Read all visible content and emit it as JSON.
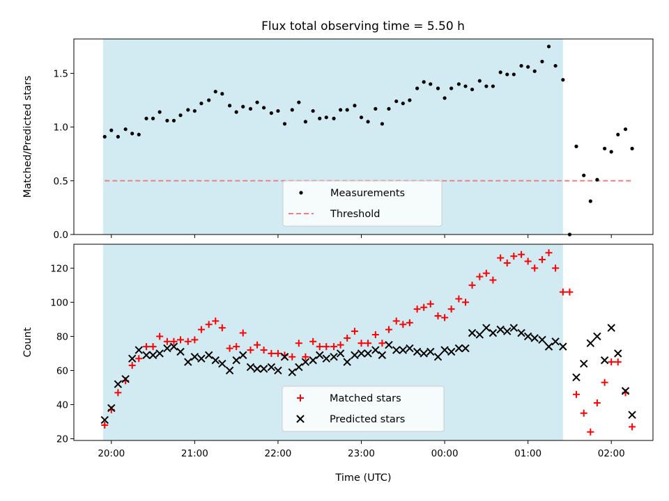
{
  "chart_data": [
    {
      "type": "scatter",
      "title": "Flux total observing time = 5.50 h",
      "ylabel": "Matched/Predicted stars",
      "ylim": [
        0,
        1.82
      ],
      "yticks": [
        0.0,
        0.5,
        1.0,
        1.5
      ],
      "ytick_labels": [
        "0.0",
        "0.5",
        "1.0",
        "1.5"
      ],
      "x_hours_range": [
        19.55,
        26.5
      ],
      "observing_window_hours": [
        19.9,
        25.42
      ],
      "observing_window_color": "#add8e6",
      "series": [
        {
          "name": "Measurements",
          "marker": "dot",
          "color": "#000000",
          "x": [
            19.92,
            20,
            20.08,
            20.17,
            20.25,
            20.33,
            20.42,
            20.5,
            20.58,
            20.67,
            20.75,
            20.83,
            20.92,
            21,
            21.08,
            21.17,
            21.25,
            21.33,
            21.42,
            21.5,
            21.58,
            21.67,
            21.75,
            21.83,
            21.92,
            22,
            22.08,
            22.17,
            22.25,
            22.33,
            22.42,
            22.5,
            22.58,
            22.67,
            22.75,
            22.83,
            22.92,
            23,
            23.08,
            23.17,
            23.25,
            23.33,
            23.42,
            23.5,
            23.58,
            23.67,
            23.75,
            23.83,
            23.92,
            24,
            24.08,
            24.17,
            24.25,
            24.33,
            24.42,
            24.5,
            24.58,
            24.67,
            24.75,
            24.83,
            24.92,
            25,
            25.08,
            25.17,
            25.25,
            25.33,
            25.42,
            25.5,
            25.58,
            25.67,
            25.75,
            25.83,
            25.92,
            26,
            26.08,
            26.17,
            26.25
          ],
          "y": [
            0.91,
            0.97,
            0.91,
            0.98,
            0.94,
            0.93,
            1.08,
            1.08,
            1.14,
            1.06,
            1.06,
            1.11,
            1.16,
            1.15,
            1.22,
            1.25,
            1.33,
            1.31,
            1.2,
            1.14,
            1.19,
            1.17,
            1.23,
            1.18,
            1.13,
            1.15,
            1.03,
            1.16,
            1.23,
            1.05,
            1.15,
            1.08,
            1.09,
            1.08,
            1.16,
            1.16,
            1.2,
            1.09,
            1.05,
            1.17,
            1.03,
            1.17,
            1.24,
            1.22,
            1.25,
            1.36,
            1.42,
            1.4,
            1.36,
            1.27,
            1.36,
            1.4,
            1.38,
            1.35,
            1.43,
            1.38,
            1.38,
            1.51,
            1.49,
            1.49,
            1.57,
            1.56,
            1.52,
            1.61,
            1.75,
            1.57,
            1.44,
            0.0,
            0.82,
            0.55,
            0.31,
            0.51,
            0.8,
            0.77,
            0.93,
            0.98,
            0.8
          ]
        },
        {
          "name": "Threshold",
          "marker": "dashed-line",
          "color": "#f08080",
          "x": [
            19.92,
            26.25
          ],
          "y": [
            0.5,
            0.5
          ]
        }
      ],
      "legend": {
        "placement": "lower center",
        "entries": [
          "Measurements",
          "Threshold"
        ]
      }
    },
    {
      "type": "scatter",
      "xlabel": "Time (UTC)",
      "ylabel": "Count",
      "ylim": [
        19,
        134
      ],
      "yticks": [
        20,
        40,
        60,
        80,
        100,
        120
      ],
      "ytick_labels": [
        "20",
        "40",
        "60",
        "80",
        "100",
        "120"
      ],
      "x_hours_range": [
        19.55,
        26.5
      ],
      "xticks_hours": [
        20,
        21,
        22,
        23,
        24,
        25,
        26
      ],
      "xtick_labels": [
        "20:00",
        "21:00",
        "22:00",
        "23:00",
        "00:00",
        "01:00",
        "02:00"
      ],
      "observing_window_hours": [
        19.9,
        25.42
      ],
      "observing_window_color": "#add8e6",
      "series": [
        {
          "name": "Matched stars",
          "marker": "plus",
          "color": "#ff0000",
          "x": [
            19.92,
            20,
            20.08,
            20.17,
            20.25,
            20.33,
            20.42,
            20.5,
            20.58,
            20.67,
            20.75,
            20.83,
            20.92,
            21,
            21.08,
            21.17,
            21.25,
            21.33,
            21.42,
            21.5,
            21.58,
            21.67,
            21.75,
            21.83,
            21.92,
            22,
            22.08,
            22.17,
            22.25,
            22.33,
            22.42,
            22.5,
            22.58,
            22.67,
            22.75,
            22.83,
            22.92,
            23,
            23.08,
            23.17,
            23.25,
            23.33,
            23.42,
            23.5,
            23.58,
            23.67,
            23.75,
            23.83,
            23.92,
            24,
            24.08,
            24.17,
            24.25,
            24.33,
            24.42,
            24.5,
            24.58,
            24.67,
            24.75,
            24.83,
            24.92,
            25,
            25.08,
            25.17,
            25.25,
            25.33,
            25.42,
            25.5,
            25.58,
            25.67,
            25.75,
            25.83,
            25.92,
            26,
            26.08,
            26.17,
            26.25
          ],
          "y": [
            28,
            37,
            47,
            54,
            63,
            67,
            74,
            74,
            80,
            77,
            77,
            78,
            77,
            78,
            84,
            87,
            89,
            85,
            73,
            74,
            82,
            72,
            75,
            72,
            70,
            70,
            69,
            68,
            76,
            68,
            77,
            74,
            74,
            74,
            75,
            79,
            83,
            76,
            76,
            81,
            76,
            84,
            89,
            87,
            88,
            96,
            97,
            99,
            92,
            91,
            96,
            102,
            100,
            110,
            115,
            117,
            113,
            126,
            123,
            127,
            128,
            124,
            120,
            125,
            129,
            120,
            106,
            106,
            46,
            35,
            24,
            41,
            53,
            65,
            65,
            47,
            27
          ]
        },
        {
          "name": "Predicted stars",
          "marker": "x",
          "color": "#000000",
          "x": [
            19.92,
            20,
            20.08,
            20.17,
            20.25,
            20.33,
            20.42,
            20.5,
            20.58,
            20.67,
            20.75,
            20.83,
            20.92,
            21,
            21.08,
            21.17,
            21.25,
            21.33,
            21.42,
            21.5,
            21.58,
            21.67,
            21.75,
            21.83,
            21.92,
            22,
            22.08,
            22.17,
            22.25,
            22.33,
            22.42,
            22.5,
            22.58,
            22.67,
            22.75,
            22.83,
            22.92,
            23,
            23.08,
            23.17,
            23.25,
            23.33,
            23.42,
            23.5,
            23.58,
            23.67,
            23.75,
            23.83,
            23.92,
            24,
            24.08,
            24.17,
            24.25,
            24.33,
            24.42,
            24.5,
            24.58,
            24.67,
            24.75,
            24.83,
            24.92,
            25,
            25.08,
            25.17,
            25.25,
            25.33,
            25.42,
            25.58,
            25.67,
            25.75,
            25.83,
            25.92,
            26,
            26.08,
            26.17,
            26.25
          ],
          "y": [
            31,
            38,
            52,
            55,
            67,
            72,
            69,
            69,
            70,
            73,
            74,
            71,
            65,
            68,
            67,
            69,
            66,
            64,
            60,
            66,
            69,
            62,
            61,
            61,
            62,
            60,
            68,
            59,
            62,
            65,
            66,
            69,
            67,
            68,
            70,
            65,
            69,
            70,
            70,
            72,
            69,
            75,
            72,
            72,
            73,
            71,
            70,
            71,
            68,
            72,
            71,
            73,
            73,
            82,
            81,
            85,
            82,
            84,
            83,
            85,
            82,
            80,
            79,
            78,
            74,
            77,
            74,
            56,
            64,
            76,
            80,
            66,
            85,
            70,
            48,
            34
          ]
        }
      ],
      "legend": {
        "placement": "lower center",
        "entries": [
          "Matched stars",
          "Predicted stars"
        ]
      }
    }
  ]
}
